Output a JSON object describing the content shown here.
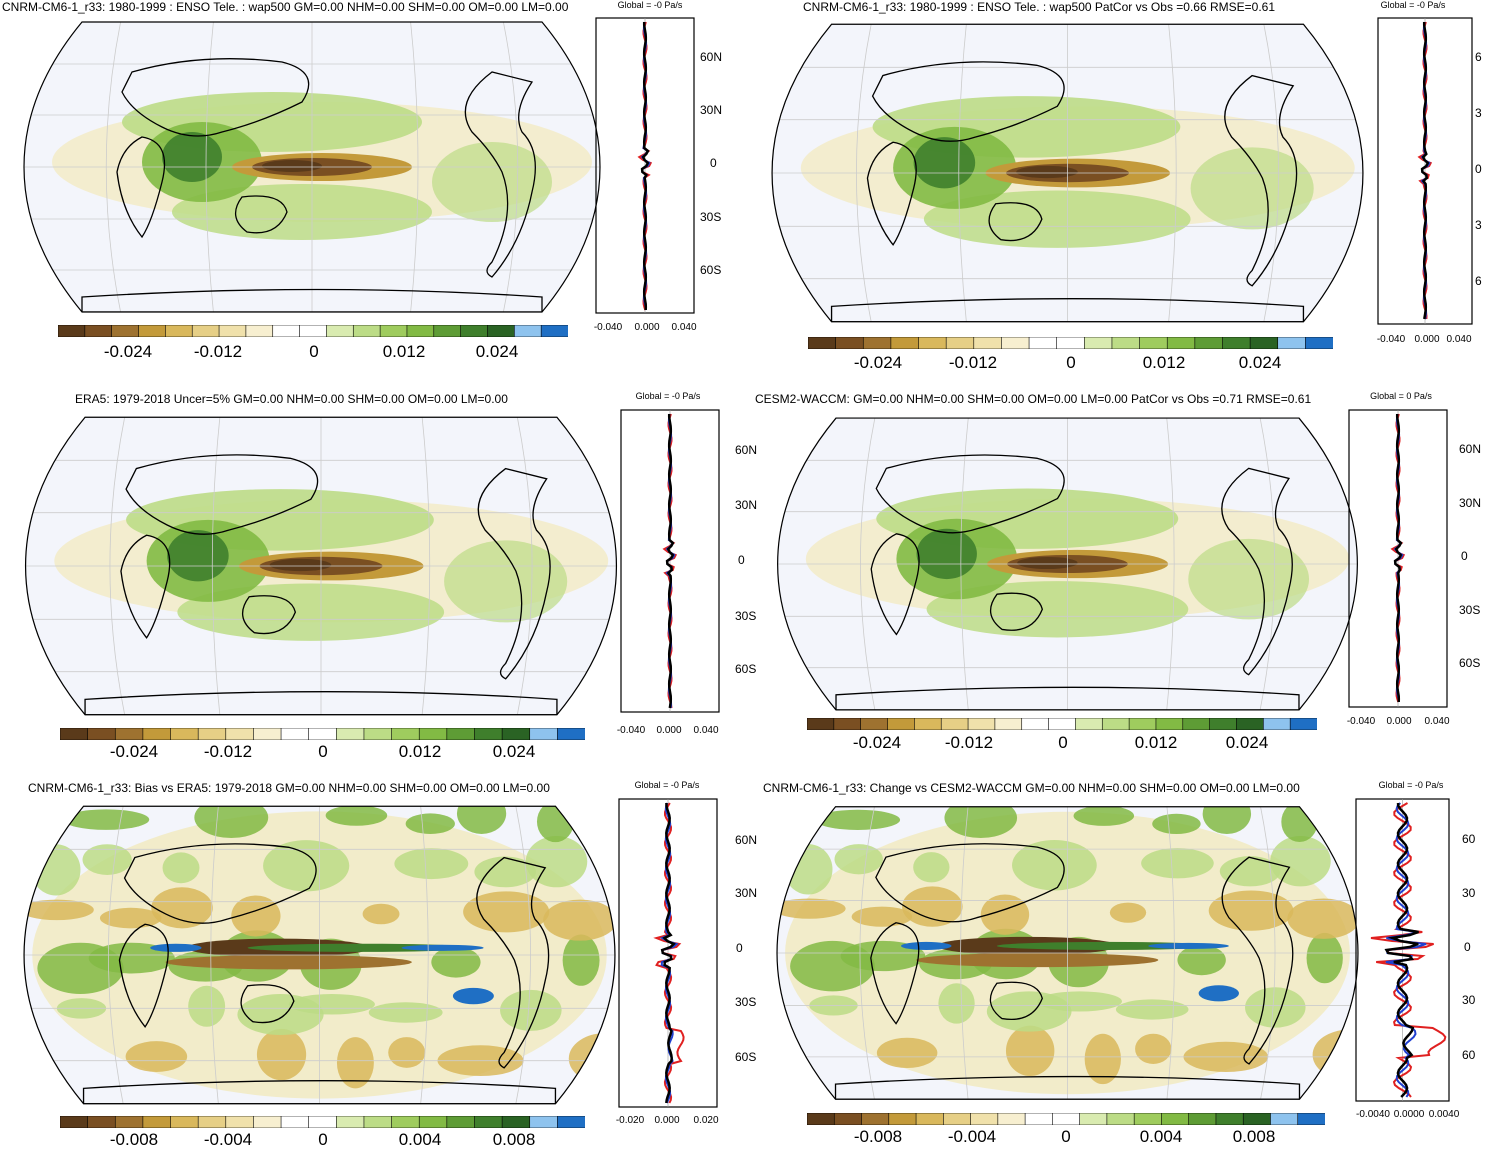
{
  "panels": [
    {
      "title": "CNRM-CM6-1_r33: 1980-1999 : ENSO Tele. : wap500 GM=0.00 NHM=0.00 SHM=0.00 OM=0.00 LM=0.00",
      "profile_title": "Global = -0 Pa/s",
      "colorbar_labels": [
        "-0.024",
        "-0.012",
        "0",
        "0.012",
        "0.024"
      ],
      "profile_x_ticks": [
        "-0.040",
        "0.000",
        "0.040"
      ],
      "lat_labels": [
        "60N",
        "30N",
        "0",
        "30S",
        "60S"
      ]
    },
    {
      "title": "CNRM-CM6-1_r33: 1980-1999 : ENSO Tele. : wap500 PatCor vs Obs =0.66 RMSE=0.61",
      "profile_title": "Global = -0 Pa/s",
      "colorbar_labels": [
        "-0.024",
        "-0.012",
        "0",
        "0.012",
        "0.024"
      ],
      "profile_x_ticks": [
        "-0.040",
        "0.000",
        "0.040"
      ],
      "lat_labels": [
        "6",
        "3",
        "0",
        "3",
        "6"
      ]
    },
    {
      "title": "ERA5: 1979-2018 Uncer=5% GM=0.00 NHM=0.00 SHM=0.00 OM=0.00 LM=0.00",
      "profile_title": "Global = -0 Pa/s",
      "colorbar_labels": [
        "-0.024",
        "-0.012",
        "0",
        "0.012",
        "0.024"
      ],
      "profile_x_ticks": [
        "-0.040",
        "0.000",
        "0.040"
      ],
      "lat_labels": [
        "60N",
        "30N",
        "0",
        "30S",
        "60S"
      ]
    },
    {
      "title": "CESM2-WACCM: GM=0.00 NHM=0.00 SHM=0.00 OM=0.00 LM=0.00 PatCor vs Obs =0.71 RMSE=0.61",
      "profile_title": "Global = 0 Pa/s",
      "colorbar_labels": [
        "-0.024",
        "-0.012",
        "0",
        "0.012",
        "0.024"
      ],
      "profile_x_ticks": [
        "-0.040",
        "0.000",
        "0.040"
      ],
      "lat_labels": [
        "60N",
        "30N",
        "0",
        "30S",
        "60S"
      ]
    },
    {
      "title": "CNRM-CM6-1_r33: Bias vs ERA5: 1979-2018 GM=0.00 NHM=0.00 SHM=0.00 OM=0.00 LM=0.00",
      "profile_title": "Global = -0 Pa/s",
      "colorbar_labels": [
        "-0.008",
        "-0.004",
        "0",
        "0.004",
        "0.008"
      ],
      "profile_x_ticks": [
        "-0.020",
        "0.000",
        "0.020"
      ],
      "lat_labels": [
        "60N",
        "30N",
        "0",
        "30S",
        "60S"
      ]
    },
    {
      "title": "CNRM-CM6-1_r33: Change vs CESM2-WACCM GM=0.00 NHM=0.00 SHM=0.00 OM=0.00 LM=0.00",
      "profile_title": "Global = -0 Pa/s",
      "colorbar_labels": [
        "-0.008",
        "-0.004",
        "0",
        "0.004",
        "0.008"
      ],
      "profile_x_ticks": [
        "-0.0040",
        "0.0000",
        "0.0040"
      ],
      "lat_labels": [
        "60",
        "30",
        "0",
        "30",
        "60"
      ]
    }
  ],
  "colors": {
    "brown_dark": "#5a3a1a",
    "tan": "#d9c77a",
    "cream": "#f5efc8",
    "white": "#ffffff",
    "green_light": "#c8e08a",
    "green_mid": "#8cc04a",
    "green_dark": "#2f6e2a",
    "blue_light": "#7ab8e8",
    "blue": "#1f6fc4",
    "ocean": "#f3f5fb"
  }
}
